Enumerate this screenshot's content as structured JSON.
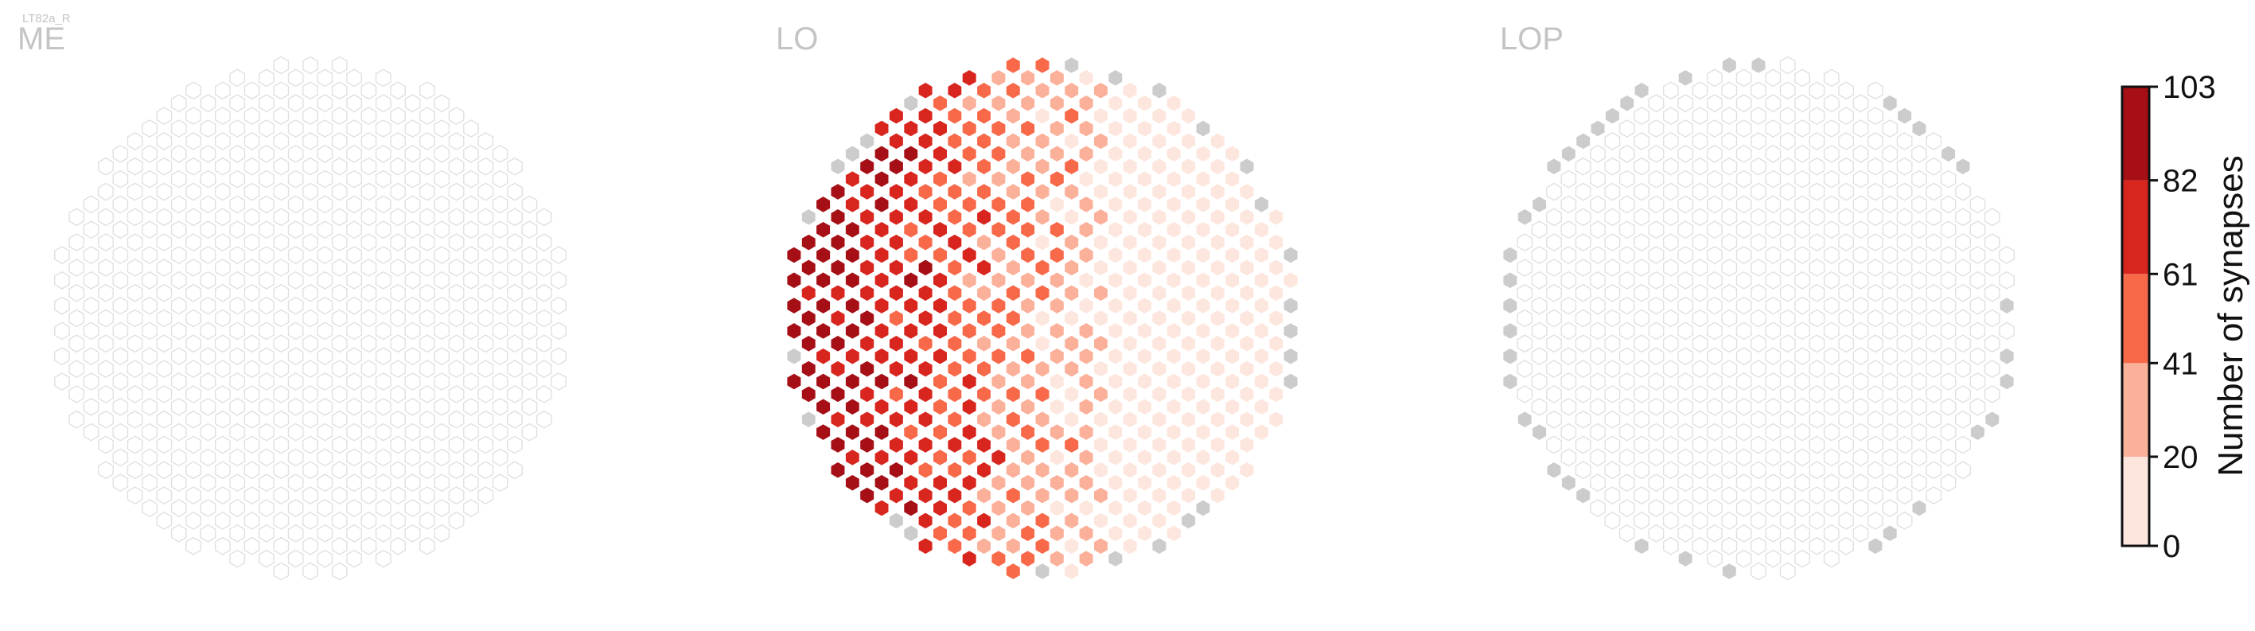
{
  "cell_type": "LT82a_R",
  "chart_data": {
    "type": "heatmap",
    "panels": [
      {
        "title": "ME",
        "cells": "empty",
        "max_row": 0,
        "max_col": 0
      },
      {
        "title": "LO",
        "cells": "graded",
        "max_row": 11,
        "max_col": 1
      },
      {
        "title": "LOP",
        "cells": "outside-border",
        "max_row": 0,
        "max_col": 0
      }
    ],
    "colorbar": {
      "label": "Number of synapses",
      "ticks": [
        "0",
        "20",
        "41",
        "61",
        "82",
        "103"
      ],
      "tick_values": [
        0,
        20,
        41,
        61,
        82,
        103
      ],
      "colors": [
        "#fde6dd",
        "#fbb09a",
        "#f8694a",
        "#d8261f",
        "#a50f15"
      ]
    },
    "colors": {
      "empty_cell_stroke": "#e0e0e0",
      "outside_cell_fill": "#cccccc",
      "title_color": "#c4c4c4"
    }
  }
}
